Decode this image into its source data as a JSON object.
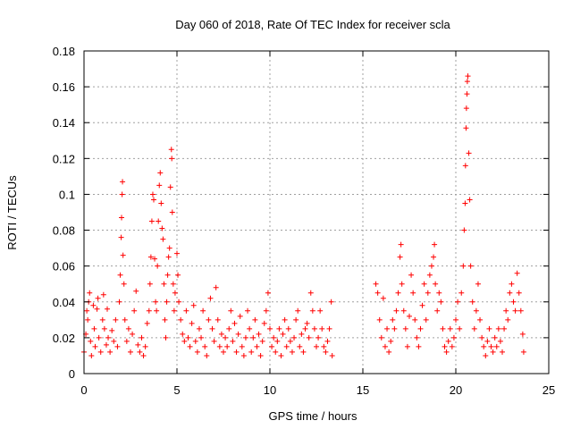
{
  "chart_data": {
    "type": "scatter",
    "title": "Day 060 of 2018, Rate Of TEC Index for receiver scla",
    "xlabel": "GPS time / hours",
    "ylabel": "ROTI / TECUs",
    "xlim": [
      0,
      25
    ],
    "ylim": [
      0,
      0.18
    ],
    "x_ticks": [
      0,
      5,
      10,
      15,
      20,
      25
    ],
    "y_ticks": [
      0,
      0.02,
      0.04,
      0.06,
      0.08,
      0.1,
      0.12,
      0.14,
      0.16,
      0.18
    ],
    "x_tick_labels": [
      "0",
      "5",
      "10",
      "15",
      "20",
      "25"
    ],
    "y_tick_labels": [
      "0",
      "0.02",
      "0.04",
      "0.06",
      "0.08",
      "0.1",
      "0.12",
      "0.14",
      "0.16",
      "0.18"
    ],
    "grid": true,
    "marker": "+",
    "series": [
      {
        "name": "ROTI",
        "color": "#ff0000",
        "points": [
          [
            0.0,
            0.012
          ],
          [
            0.1,
            0.022
          ],
          [
            0.15,
            0.035
          ],
          [
            0.2,
            0.03
          ],
          [
            0.25,
            0.04
          ],
          [
            0.3,
            0.045
          ],
          [
            0.35,
            0.018
          ],
          [
            0.4,
            0.01
          ],
          [
            0.5,
            0.038
          ],
          [
            0.55,
            0.025
          ],
          [
            0.6,
            0.015
          ],
          [
            0.7,
            0.036
          ],
          [
            0.75,
            0.042
          ],
          [
            0.8,
            0.02
          ],
          [
            0.9,
            0.012
          ],
          [
            1.0,
            0.03
          ],
          [
            1.05,
            0.044
          ],
          [
            1.1,
            0.025
          ],
          [
            1.2,
            0.016
          ],
          [
            1.25,
            0.036
          ],
          [
            1.3,
            0.02
          ],
          [
            1.4,
            0.012
          ],
          [
            1.5,
            0.024
          ],
          [
            1.6,
            0.018
          ],
          [
            1.7,
            0.03
          ],
          [
            1.8,
            0.015
          ],
          [
            1.9,
            0.04
          ],
          [
            1.95,
            0.055
          ],
          [
            2.0,
            0.076
          ],
          [
            2.02,
            0.087
          ],
          [
            2.05,
            0.1
          ],
          [
            2.07,
            0.107
          ],
          [
            2.1,
            0.066
          ],
          [
            2.15,
            0.05
          ],
          [
            2.2,
            0.03
          ],
          [
            2.3,
            0.018
          ],
          [
            2.4,
            0.025
          ],
          [
            2.5,
            0.012
          ],
          [
            2.6,
            0.022
          ],
          [
            2.7,
            0.035
          ],
          [
            2.8,
            0.046
          ],
          [
            2.9,
            0.016
          ],
          [
            3.0,
            0.012
          ],
          [
            3.1,
            0.02
          ],
          [
            3.2,
            0.01
          ],
          [
            3.3,
            0.015
          ],
          [
            3.4,
            0.028
          ],
          [
            3.5,
            0.035
          ],
          [
            3.55,
            0.05
          ],
          [
            3.6,
            0.065
          ],
          [
            3.65,
            0.085
          ],
          [
            3.7,
            0.1
          ],
          [
            3.75,
            0.097
          ],
          [
            3.8,
            0.064
          ],
          [
            3.85,
            0.04
          ],
          [
            3.9,
            0.035
          ],
          [
            3.95,
            0.06
          ],
          [
            4.0,
            0.085
          ],
          [
            4.05,
            0.105
          ],
          [
            4.1,
            0.112
          ],
          [
            4.15,
            0.095
          ],
          [
            4.2,
            0.081
          ],
          [
            4.25,
            0.075
          ],
          [
            4.3,
            0.05
          ],
          [
            4.35,
            0.03
          ],
          [
            4.4,
            0.02
          ],
          [
            4.45,
            0.04
          ],
          [
            4.5,
            0.055
          ],
          [
            4.55,
            0.065
          ],
          [
            4.6,
            0.07
          ],
          [
            4.65,
            0.104
          ],
          [
            4.7,
            0.125
          ],
          [
            4.72,
            0.12
          ],
          [
            4.75,
            0.09
          ],
          [
            4.8,
            0.05
          ],
          [
            4.85,
            0.035
          ],
          [
            4.9,
            0.045
          ],
          [
            5.0,
            0.067
          ],
          [
            5.05,
            0.055
          ],
          [
            5.1,
            0.04
          ],
          [
            5.2,
            0.03
          ],
          [
            5.3,
            0.022
          ],
          [
            5.4,
            0.018
          ],
          [
            5.5,
            0.035
          ],
          [
            5.6,
            0.02
          ],
          [
            5.7,
            0.015
          ],
          [
            5.8,
            0.028
          ],
          [
            5.9,
            0.038
          ],
          [
            6.0,
            0.018
          ],
          [
            6.1,
            0.012
          ],
          [
            6.2,
            0.025
          ],
          [
            6.3,
            0.02
          ],
          [
            6.4,
            0.035
          ],
          [
            6.5,
            0.015
          ],
          [
            6.6,
            0.01
          ],
          [
            6.7,
            0.03
          ],
          [
            6.8,
            0.042
          ],
          [
            6.9,
            0.025
          ],
          [
            7.0,
            0.018
          ],
          [
            7.1,
            0.048
          ],
          [
            7.2,
            0.03
          ],
          [
            7.3,
            0.015
          ],
          [
            7.4,
            0.022
          ],
          [
            7.5,
            0.012
          ],
          [
            7.6,
            0.02
          ],
          [
            7.7,
            0.015
          ],
          [
            7.8,
            0.025
          ],
          [
            7.9,
            0.035
          ],
          [
            8.0,
            0.018
          ],
          [
            8.1,
            0.028
          ],
          [
            8.2,
            0.012
          ],
          [
            8.3,
            0.022
          ],
          [
            8.4,
            0.032
          ],
          [
            8.5,
            0.015
          ],
          [
            8.6,
            0.01
          ],
          [
            8.7,
            0.02
          ],
          [
            8.8,
            0.035
          ],
          [
            8.9,
            0.025
          ],
          [
            9.0,
            0.012
          ],
          [
            9.1,
            0.02
          ],
          [
            9.2,
            0.03
          ],
          [
            9.3,
            0.015
          ],
          [
            9.4,
            0.022
          ],
          [
            9.5,
            0.01
          ],
          [
            9.6,
            0.018
          ],
          [
            9.7,
            0.028
          ],
          [
            9.8,
            0.035
          ],
          [
            9.9,
            0.045
          ],
          [
            10.0,
            0.025
          ],
          [
            10.1,
            0.015
          ],
          [
            10.2,
            0.02
          ],
          [
            10.3,
            0.012
          ],
          [
            10.4,
            0.018
          ],
          [
            10.5,
            0.025
          ],
          [
            10.6,
            0.01
          ],
          [
            10.7,
            0.022
          ],
          [
            10.8,
            0.03
          ],
          [
            10.9,
            0.015
          ],
          [
            11.0,
            0.025
          ],
          [
            11.1,
            0.018
          ],
          [
            11.2,
            0.012
          ],
          [
            11.3,
            0.02
          ],
          [
            11.4,
            0.03
          ],
          [
            11.5,
            0.035
          ],
          [
            11.6,
            0.015
          ],
          [
            11.7,
            0.022
          ],
          [
            11.8,
            0.012
          ],
          [
            11.9,
            0.025
          ],
          [
            12.0,
            0.028
          ],
          [
            12.1,
            0.02
          ],
          [
            12.2,
            0.045
          ],
          [
            12.3,
            0.035
          ],
          [
            12.4,
            0.025
          ],
          [
            12.5,
            0.015
          ],
          [
            12.6,
            0.02
          ],
          [
            12.7,
            0.035
          ],
          [
            12.8,
            0.025
          ],
          [
            12.9,
            0.015
          ],
          [
            13.0,
            0.012
          ],
          [
            13.1,
            0.018
          ],
          [
            13.2,
            0.025
          ],
          [
            13.3,
            0.04
          ],
          [
            13.35,
            0.01
          ],
          [
            15.7,
            0.05
          ],
          [
            15.8,
            0.045
          ],
          [
            15.9,
            0.03
          ],
          [
            16.0,
            0.02
          ],
          [
            16.1,
            0.042
          ],
          [
            16.2,
            0.015
          ],
          [
            16.3,
            0.025
          ],
          [
            16.4,
            0.012
          ],
          [
            16.5,
            0.018
          ],
          [
            16.6,
            0.03
          ],
          [
            16.7,
            0.025
          ],
          [
            16.8,
            0.035
          ],
          [
            16.9,
            0.045
          ],
          [
            17.0,
            0.065
          ],
          [
            17.05,
            0.072
          ],
          [
            17.1,
            0.05
          ],
          [
            17.2,
            0.035
          ],
          [
            17.3,
            0.025
          ],
          [
            17.4,
            0.015
          ],
          [
            17.5,
            0.032
          ],
          [
            17.6,
            0.055
          ],
          [
            17.7,
            0.045
          ],
          [
            17.8,
            0.03
          ],
          [
            17.9,
            0.02
          ],
          [
            18.0,
            0.015
          ],
          [
            18.1,
            0.025
          ],
          [
            18.2,
            0.038
          ],
          [
            18.3,
            0.05
          ],
          [
            18.4,
            0.03
          ],
          [
            18.5,
            0.045
          ],
          [
            18.6,
            0.055
          ],
          [
            18.7,
            0.06
          ],
          [
            18.8,
            0.065
          ],
          [
            18.85,
            0.072
          ],
          [
            18.9,
            0.05
          ],
          [
            19.0,
            0.035
          ],
          [
            19.1,
            0.045
          ],
          [
            19.2,
            0.04
          ],
          [
            19.3,
            0.025
          ],
          [
            19.4,
            0.015
          ],
          [
            19.5,
            0.012
          ],
          [
            19.6,
            0.018
          ],
          [
            19.7,
            0.025
          ],
          [
            19.8,
            0.015
          ],
          [
            19.9,
            0.02
          ],
          [
            20.0,
            0.03
          ],
          [
            20.1,
            0.04
          ],
          [
            20.2,
            0.025
          ],
          [
            20.3,
            0.045
          ],
          [
            20.4,
            0.06
          ],
          [
            20.45,
            0.08
          ],
          [
            20.5,
            0.095
          ],
          [
            20.52,
            0.116
          ],
          [
            20.55,
            0.137
          ],
          [
            20.57,
            0.148
          ],
          [
            20.6,
            0.156
          ],
          [
            20.62,
            0.163
          ],
          [
            20.65,
            0.166
          ],
          [
            20.7,
            0.123
          ],
          [
            20.75,
            0.097
          ],
          [
            20.8,
            0.06
          ],
          [
            20.9,
            0.04
          ],
          [
            21.0,
            0.025
          ],
          [
            21.1,
            0.035
          ],
          [
            21.2,
            0.05
          ],
          [
            21.3,
            0.03
          ],
          [
            21.4,
            0.02
          ],
          [
            21.5,
            0.015
          ],
          [
            21.6,
            0.01
          ],
          [
            21.7,
            0.018
          ],
          [
            21.8,
            0.025
          ],
          [
            21.9,
            0.015
          ],
          [
            22.0,
            0.012
          ],
          [
            22.1,
            0.02
          ],
          [
            22.2,
            0.015
          ],
          [
            22.3,
            0.025
          ],
          [
            22.4,
            0.018
          ],
          [
            22.5,
            0.012
          ],
          [
            22.6,
            0.025
          ],
          [
            22.7,
            0.035
          ],
          [
            22.8,
            0.03
          ],
          [
            22.9,
            0.045
          ],
          [
            23.0,
            0.05
          ],
          [
            23.1,
            0.04
          ],
          [
            23.2,
            0.035
          ],
          [
            23.3,
            0.056
          ],
          [
            23.4,
            0.045
          ],
          [
            23.5,
            0.035
          ],
          [
            23.6,
            0.022
          ],
          [
            23.65,
            0.012
          ]
        ]
      }
    ]
  }
}
